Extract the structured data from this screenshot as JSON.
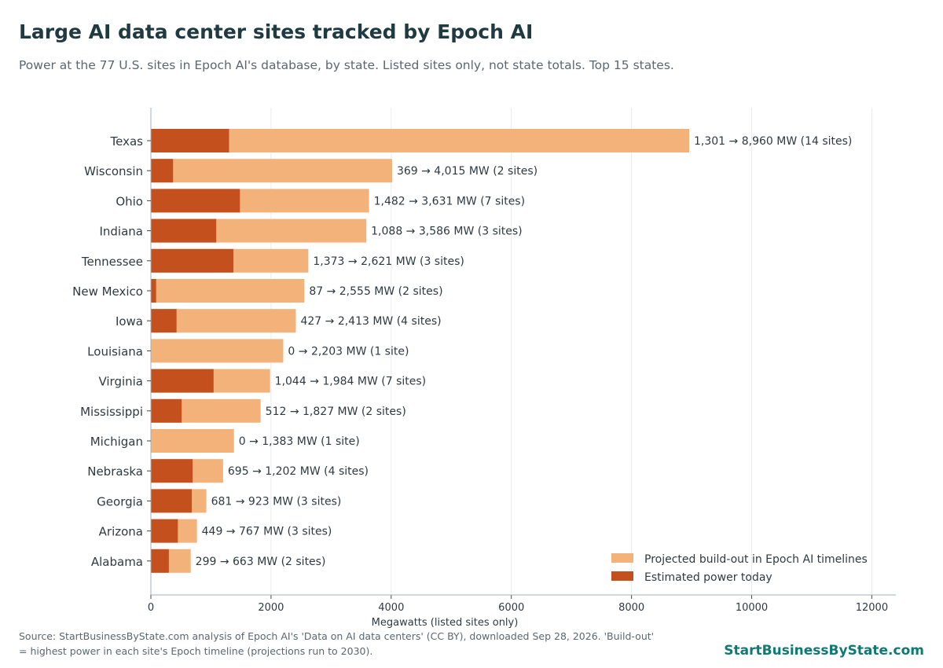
{
  "header": {
    "title": "Large AI data center sites tracked by Epoch AI",
    "subtitle": "Power at the 77 U.S. sites in Epoch AI's database, by state. Listed sites only, not state totals. Top 15 states."
  },
  "footer": {
    "source": "Source: StartBusinessByState.com analysis of Epoch AI's 'Data on AI data centers' (CC BY), downloaded Sep 28, 2026. 'Build-out' = highest power in each site's Epoch timeline (projections run to 2030).",
    "brand": "StartBusinessByState.com"
  },
  "colors": {
    "today": "#c4501d",
    "projected": "#f2b27a",
    "grid": "#ebebeb",
    "axis": "#9fb0b8"
  },
  "chart_data": {
    "type": "bar",
    "orientation": "horizontal",
    "stacked": "overlay",
    "xlabel": "Megawatts (listed sites only)",
    "xlim": [
      0,
      12400
    ],
    "xticks": [
      0,
      2000,
      4000,
      6000,
      8000,
      10000,
      12000
    ],
    "grid": "vertical",
    "legend_position": "bottom-right",
    "categories": [
      "Texas",
      "Wisconsin",
      "Ohio",
      "Indiana",
      "Tennessee",
      "New Mexico",
      "Iowa",
      "Louisiana",
      "Virginia",
      "Mississippi",
      "Michigan",
      "Nebraska",
      "Georgia",
      "Arizona",
      "Alabama"
    ],
    "series": [
      {
        "name": "Projected build-out in Epoch AI timelines",
        "values": [
          8960,
          4015,
          3631,
          3586,
          2621,
          2555,
          2413,
          2203,
          1984,
          1827,
          1383,
          1202,
          923,
          767,
          663
        ]
      },
      {
        "name": "Estimated power today",
        "values": [
          1301,
          369,
          1482,
          1088,
          1373,
          87,
          427,
          0,
          1044,
          512,
          0,
          695,
          681,
          449,
          299
        ]
      }
    ],
    "data_labels": [
      "1,301 → 8,960 MW  (14 sites)",
      "369 → 4,015 MW  (2 sites)",
      "1,482 → 3,631 MW  (7 sites)",
      "1,088 → 3,586 MW  (3 sites)",
      "1,373 → 2,621 MW  (3 sites)",
      "87 → 2,555 MW  (2 sites)",
      "427 → 2,413 MW  (4 sites)",
      "0 → 2,203 MW  (1 site)",
      "1,044 → 1,984 MW  (7 sites)",
      "512 → 1,827 MW  (2 sites)",
      "0 → 1,383 MW  (1 site)",
      "695 → 1,202 MW  (4 sites)",
      "681 → 923 MW  (3 sites)",
      "449 → 767 MW  (3 sites)",
      "299 → 663 MW  (2 sites)"
    ]
  }
}
